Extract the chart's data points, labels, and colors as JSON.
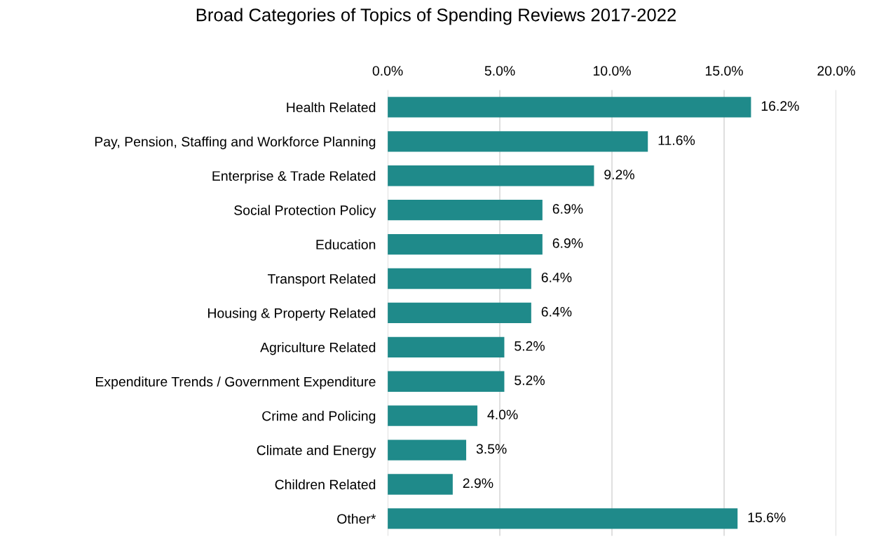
{
  "chart_data": {
    "type": "bar",
    "orientation": "horizontal",
    "title": "Broad Categories of Topics of Spending Reviews 2017-2022",
    "categories": [
      "Health Related",
      "Pay, Pension, Staffing and Workforce Planning",
      "Enterprise & Trade Related",
      "Social Protection Policy",
      "Education",
      "Transport Related",
      "Housing & Property Related",
      "Agriculture Related",
      "Expenditure Trends / Government Expenditure",
      "Crime and Policing",
      "Climate and Energy",
      "Children Related",
      "Other*"
    ],
    "values": [
      16.2,
      11.6,
      9.2,
      6.9,
      6.9,
      6.4,
      6.4,
      5.2,
      5.2,
      4.0,
      3.5,
      2.9,
      15.6
    ],
    "value_labels": [
      "16.2%",
      "11.6%",
      "9.2%",
      "6.9%",
      "6.9%",
      "6.4%",
      "6.4%",
      "5.2%",
      "5.2%",
      "4.0%",
      "3.5%",
      "2.9%",
      "15.6%"
    ],
    "color": "#1f8a8a",
    "xlim": [
      0,
      20
    ],
    "xticks": [
      {
        "value": 0,
        "label": "0.0%"
      },
      {
        "value": 5,
        "label": "5.0%"
      },
      {
        "value": 10,
        "label": "10.0%"
      },
      {
        "value": 15,
        "label": "15.0%"
      },
      {
        "value": 20,
        "label": "20.0%"
      }
    ],
    "grid": "x",
    "legend": false
  }
}
